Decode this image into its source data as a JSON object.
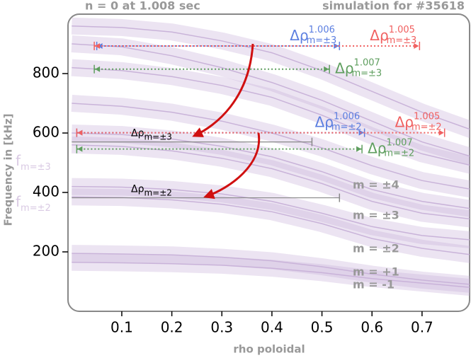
{
  "chart_data": {
    "type": "line",
    "title_left": "n = 0 at 1.008 sec",
    "title_right": "simulation for #35618",
    "xlabel": "rho poloidal",
    "ylabel": "Frequency in [kHz]",
    "xlim": [
      -0.0075,
      0.795
    ],
    "ylim": [
      0,
      1000
    ],
    "xticks": [
      0.1,
      0.2,
      0.3,
      0.4,
      0.5,
      0.6,
      0.7
    ],
    "yticks": [
      200,
      400,
      600,
      800
    ],
    "x": [
      0,
      0.1,
      0.2,
      0.3,
      0.4,
      0.5,
      0.6,
      0.7,
      0.8
    ],
    "series": [
      {
        "color": "#c9b3d9",
        "values": [
          165,
          163,
          160,
          155,
          145,
          130,
          110,
          95,
          80
        ]
      },
      {
        "color": "#c9b3d9",
        "values": [
          195,
          193,
          190,
          182,
          170,
          150,
          125,
          105,
          90
        ]
      },
      {
        "color": "#c9b3d9",
        "values": [
          385,
          383,
          375,
          360,
          335,
          295,
          245,
          212,
          190
        ]
      },
      {
        "color": "#c9b3d9",
        "values": [
          420,
          418,
          410,
          395,
          370,
          330,
          285,
          255,
          240
        ]
      },
      {
        "color": "#c9b3d9",
        "values": [
          560,
          555,
          540,
          515,
          480,
          430,
          370,
          330,
          310
        ]
      },
      {
        "color": "#c9b3d9",
        "values": [
          600,
          595,
          580,
          555,
          520,
          470,
          410,
          370,
          345
        ]
      },
      {
        "color": "#c9b3d9",
        "values": [
          700,
          690,
          670,
          640,
          600,
          550,
          490,
          440,
          410
        ]
      },
      {
        "color": "#c9b3d9",
        "values": [
          820,
          810,
          790,
          760,
          720,
          660,
          590,
          530,
          490
        ]
      },
      {
        "color": "#c9b3d9",
        "values": [
          900,
          890,
          860,
          820,
          770,
          710,
          640,
          570,
          520
        ]
      },
      {
        "color": "#c9b3d9",
        "values": [
          960,
          955,
          940,
          910,
          870,
          810,
          740,
          670,
          610
        ]
      }
    ],
    "annotations": [
      {
        "text": "Δρ",
        "sup": "1.006",
        "sub": "m=±3",
        "color": "#5b7ee0",
        "y": 893,
        "x": [
          0.05,
          0.535
        ]
      },
      {
        "text": "Δρ",
        "sup": "1.005",
        "sub": "m=±3",
        "color": "#f06060",
        "y": 893,
        "x": [
          0.045,
          0.695
        ]
      },
      {
        "text": "Δρ",
        "sup": "1.007",
        "sub": "m=±3",
        "color": "#5e9e5e",
        "y": 815,
        "x": [
          0.045,
          0.515
        ]
      },
      {
        "text": "Δρ",
        "sup": "1.006",
        "sub": "m=±2",
        "color": "#5b7ee0",
        "y": 601,
        "x": [
          0.01,
          0.585
        ]
      },
      {
        "text": "Δρ",
        "sup": "1.005",
        "sub": "m=±2",
        "color": "#f06060",
        "y": 601,
        "x": [
          0.01,
          0.745
        ]
      },
      {
        "text": "Δρ",
        "sup": "1.007",
        "sub": "m=±2",
        "color": "#5e9e5e",
        "y": 546,
        "x": [
          0.01,
          0.58
        ]
      },
      {
        "text": "Δρ",
        "sub": "m=±3",
        "color": "#888888",
        "y": 570,
        "x": [
          0.0,
          0.48
        ]
      },
      {
        "text": "Δρ",
        "sub": "m=±2",
        "color": "#888888",
        "y": 382,
        "x": [
          0.0,
          0.535
        ]
      }
    ],
    "mode_labels": [
      "m = ±4",
      "m = ±3",
      "m = ±2",
      "m = +1",
      "m = -1"
    ],
    "f_labels": [
      {
        "text": "f",
        "sub": "m=±3"
      },
      {
        "text": "f",
        "sub": "m=±2"
      }
    ]
  }
}
